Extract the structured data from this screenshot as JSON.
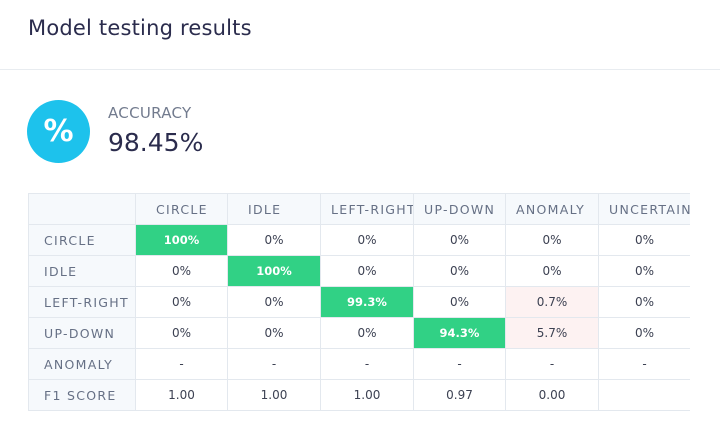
{
  "header": {
    "title": "Model testing results"
  },
  "accuracy": {
    "icon_glyph": "%",
    "icon": "percent-icon",
    "label": "ACCURACY",
    "value": "98.45%"
  },
  "colors": {
    "accent": "#1dc2ec",
    "correct": "#31d185",
    "misclassified": "#fdf2f2"
  },
  "confusion_matrix": {
    "columns": [
      "CIRCLE",
      "IDLE",
      "LEFT-RIGHT",
      "UP-DOWN",
      "ANOMALY",
      "UNCERTAIN"
    ],
    "rows": [
      {
        "label": "CIRCLE",
        "cells": [
          "100%",
          "0%",
          "0%",
          "0%",
          "0%",
          "0%"
        ]
      },
      {
        "label": "IDLE",
        "cells": [
          "0%",
          "100%",
          "0%",
          "0%",
          "0%",
          "0%"
        ]
      },
      {
        "label": "LEFT-RIGHT",
        "cells": [
          "0%",
          "0%",
          "99.3%",
          "0%",
          "0.7%",
          "0%"
        ]
      },
      {
        "label": "UP-DOWN",
        "cells": [
          "0%",
          "0%",
          "0%",
          "94.3%",
          "5.7%",
          "0%"
        ]
      },
      {
        "label": "ANOMALY",
        "cells": [
          "-",
          "-",
          "-",
          "-",
          "-",
          "-"
        ]
      },
      {
        "label": "F1 SCORE",
        "cells": [
          "1.00",
          "1.00",
          "1.00",
          "0.97",
          "0.00",
          ""
        ]
      }
    ]
  }
}
